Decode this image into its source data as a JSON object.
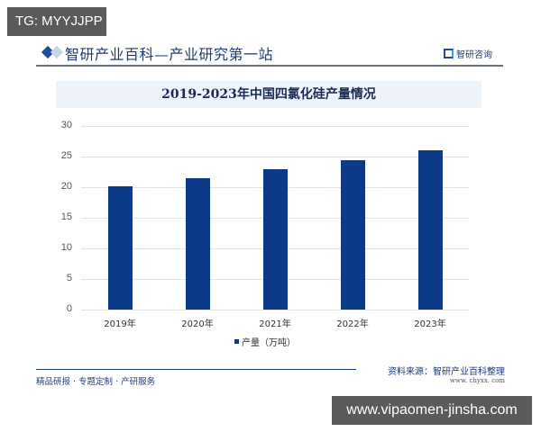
{
  "overlay_top": "TG: MYYJJPP",
  "overlay_bottom": "www.vipaomen-jinsha.com",
  "header": {
    "title": "智研产业百科—产业研究第一站",
    "logo_text": "智研咨询"
  },
  "chart_data": {
    "type": "bar",
    "title": "2019-2023年中国四氯化硅产量情况",
    "categories": [
      "2019年",
      "2020年",
      "2021年",
      "2022年",
      "2023年"
    ],
    "series": [
      {
        "name": "产量（万吨）",
        "values": [
          20.1,
          21.5,
          22.9,
          24.4,
          26.1
        ],
        "color": "#0d3a87"
      }
    ],
    "xlabel": "",
    "ylabel": "",
    "ylim": [
      0,
      30
    ],
    "yticks": [
      "0",
      "5",
      "10",
      "15",
      "20",
      "25",
      "30"
    ],
    "grid": true,
    "legend_position": "bottom"
  },
  "footer": {
    "left": "精品研报 · 专题定制 · 产研服务",
    "source": "资料来源：智研产业百科整理",
    "url": "www. chyxx. com"
  }
}
